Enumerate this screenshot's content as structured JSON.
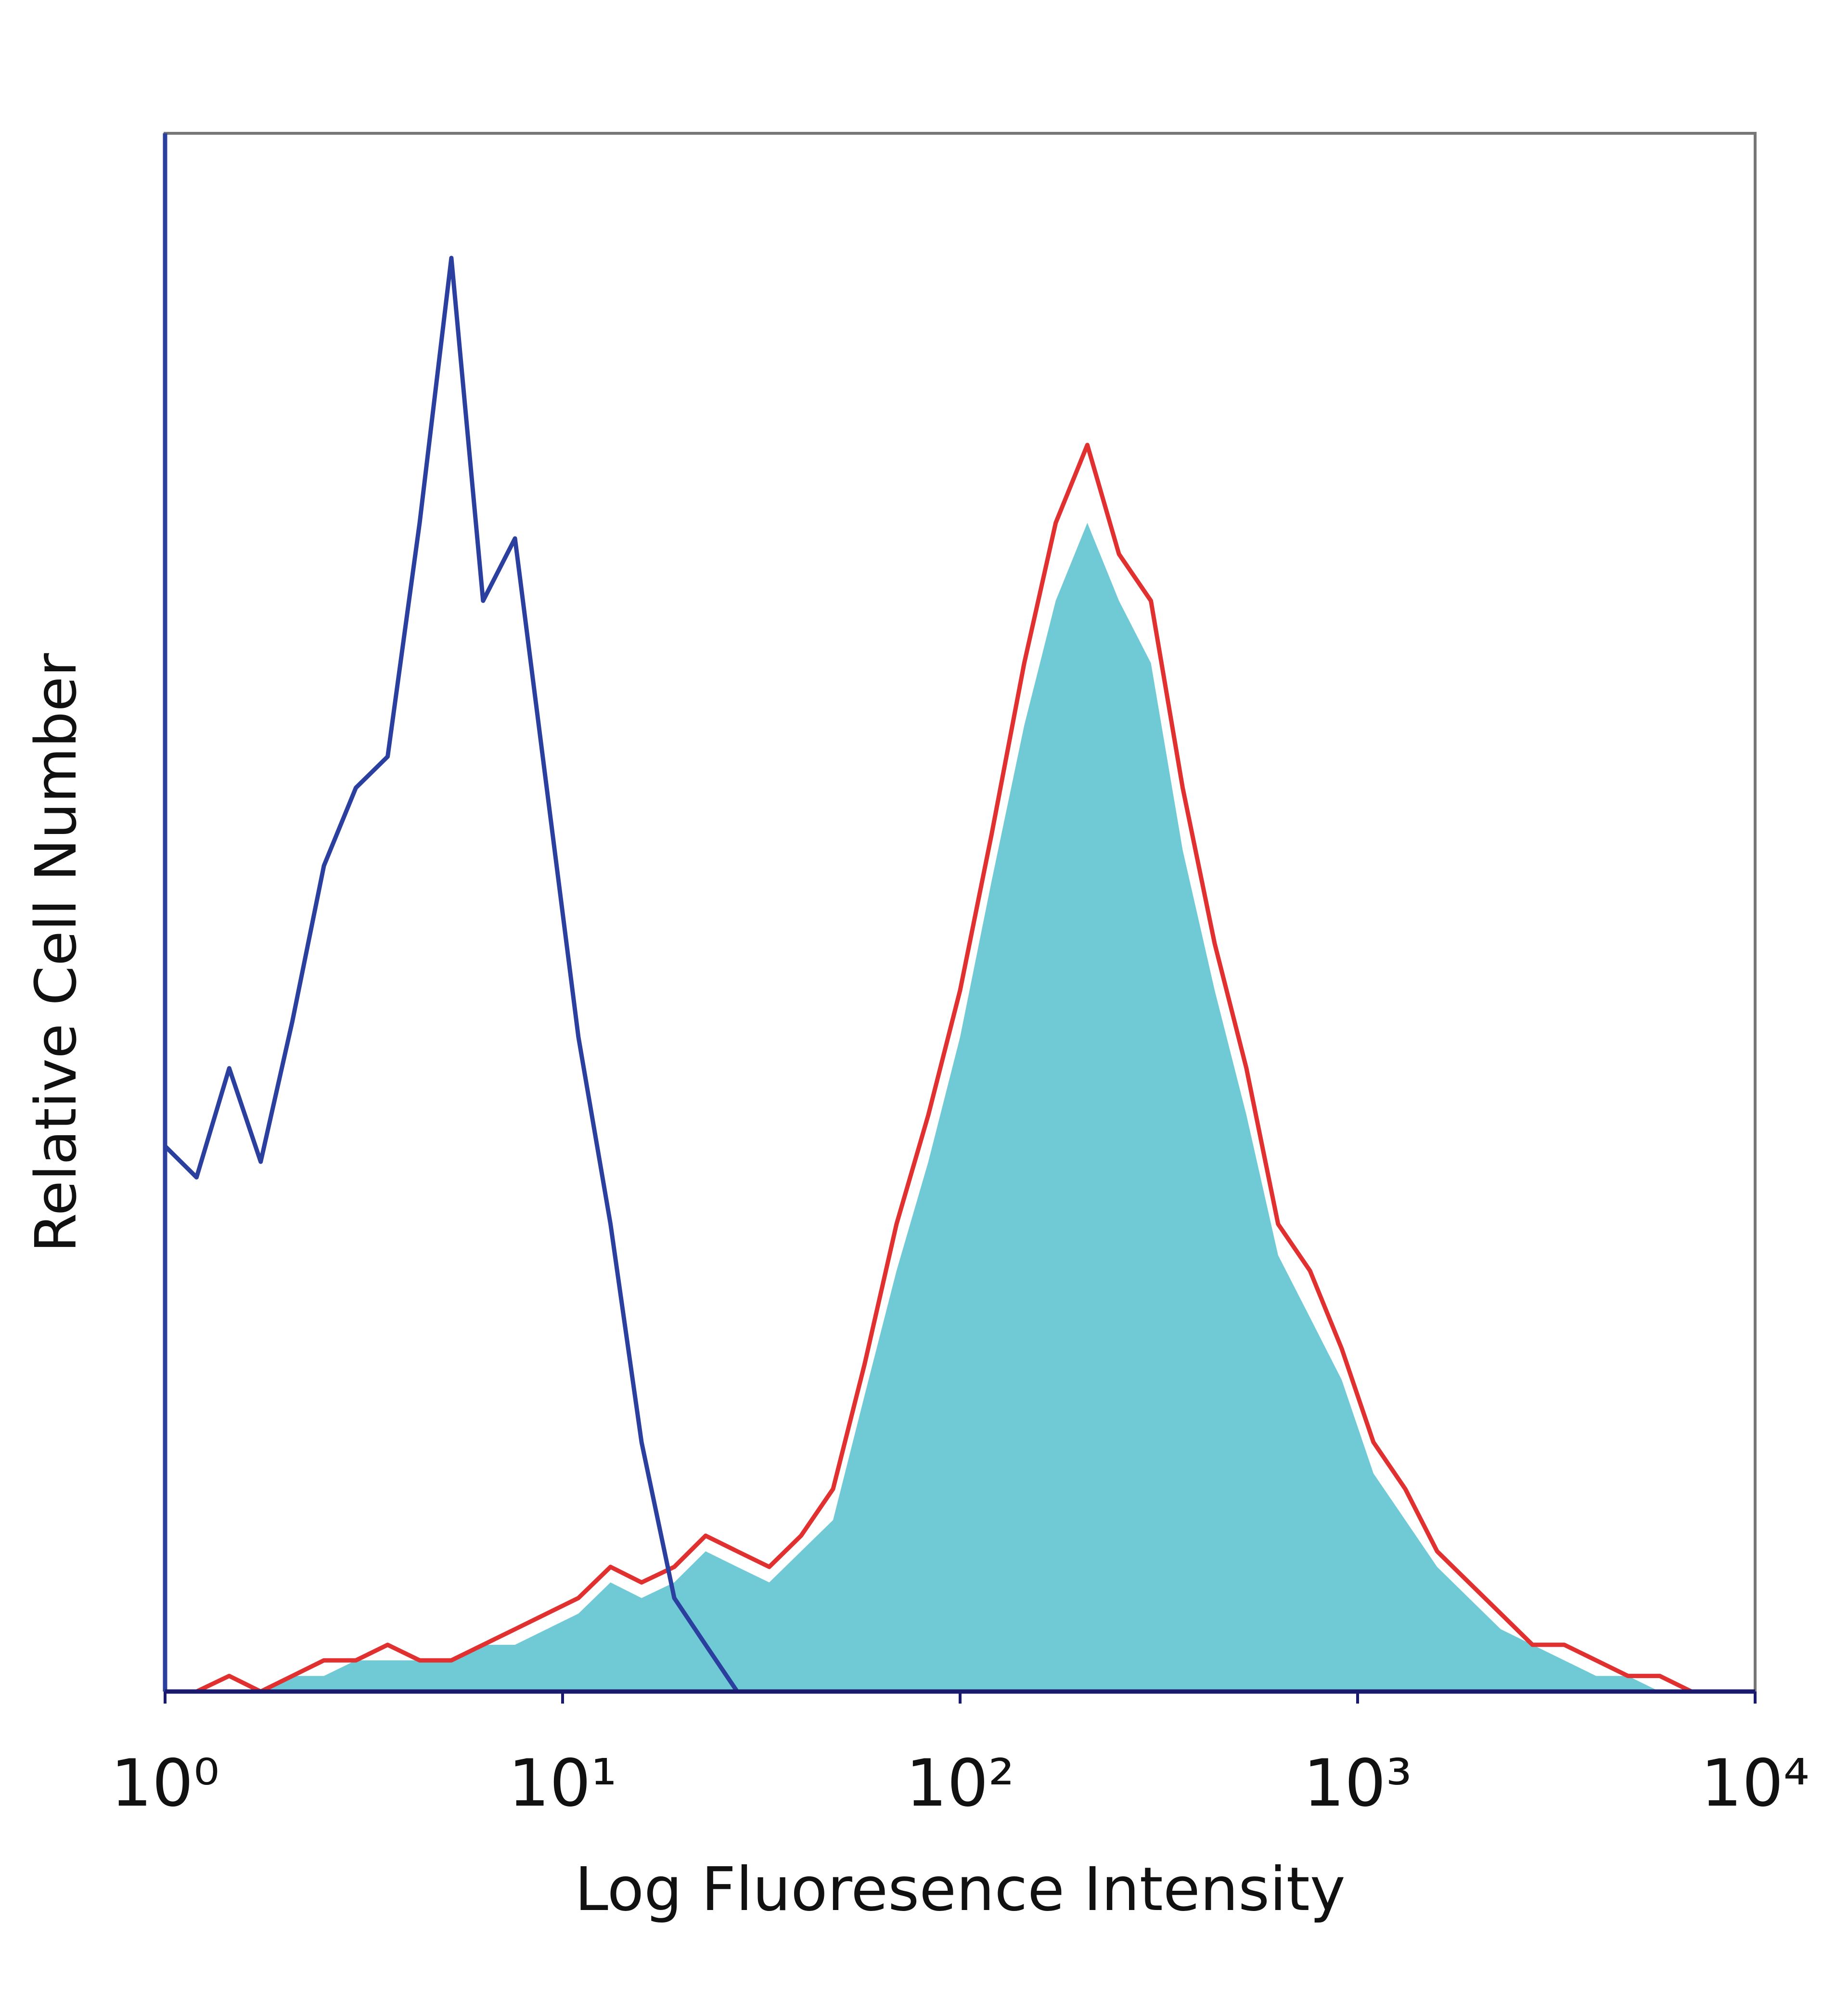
{
  "chart_data": {
    "type": "line",
    "xlabel": "Log Fluoresence Intensity",
    "ylabel": "Relative Cell Number",
    "xscale": "log",
    "xlim": [
      1,
      10000
    ],
    "ylim": [
      0,
      100
    ],
    "xticks": [
      {
        "value": 1,
        "label": "10⁰"
      },
      {
        "value": 10,
        "label": "10¹"
      },
      {
        "value": 100,
        "label": "10²"
      },
      {
        "value": 1000,
        "label": "10³"
      },
      {
        "value": 10000,
        "label": "10⁴"
      }
    ],
    "x": [
      1,
      1.2,
      1.45,
      1.74,
      2.09,
      2.51,
      3.02,
      3.63,
      4.37,
      5.25,
      6.31,
      7.59,
      9.12,
      10.96,
      13.2,
      15.8,
      19.1,
      22.9,
      27.5,
      33.1,
      39.8,
      47.9,
      57.5,
      69.2,
      83.2,
      100,
      120,
      145,
      174,
      209,
      251,
      302,
      363,
      437,
      525,
      631,
      759,
      912,
      1096,
      1318,
      1585,
      1905,
      2291,
      2754,
      3311,
      3981,
      4786,
      5754,
      6918,
      8318
    ],
    "series": [
      {
        "color": "#6fcad6",
        "fill": true,
        "values": [
          0,
          0,
          0,
          0,
          1,
          1,
          2,
          2,
          2,
          2,
          3,
          3,
          4,
          5,
          7,
          6,
          7,
          9,
          8,
          7,
          9,
          11,
          19,
          27,
          34,
          42,
          52,
          62,
          70,
          75,
          70,
          66,
          54,
          45,
          37,
          28,
          24,
          20,
          14,
          11,
          8,
          6,
          4,
          3,
          2,
          1,
          1,
          0,
          0,
          0
        ]
      },
      {
        "color": "#e03030",
        "fill": false,
        "values": [
          0,
          0,
          1,
          0,
          1,
          2,
          2,
          3,
          2,
          2,
          3,
          4,
          5,
          6,
          8,
          7,
          8,
          10,
          9,
          8,
          10,
          13,
          21,
          30,
          37,
          45,
          55,
          66,
          75,
          80,
          73,
          70,
          58,
          48,
          40,
          30,
          27,
          22,
          16,
          13,
          9,
          7,
          5,
          3,
          3,
          2,
          1,
          1,
          0,
          0
        ]
      },
      {
        "color": "#2b3f9e",
        "fill": false,
        "values": [
          35,
          33,
          40,
          34,
          43,
          53,
          58,
          60,
          75,
          92,
          70,
          74,
          58,
          42,
          30,
          16,
          6,
          3,
          0,
          0,
          0,
          0,
          0,
          0,
          0,
          0,
          0,
          0,
          0,
          0,
          0,
          0,
          0,
          0,
          0,
          0,
          0,
          0,
          0,
          0,
          0,
          0,
          0,
          0,
          0,
          0,
          0,
          0,
          0,
          0
        ]
      }
    ]
  }
}
